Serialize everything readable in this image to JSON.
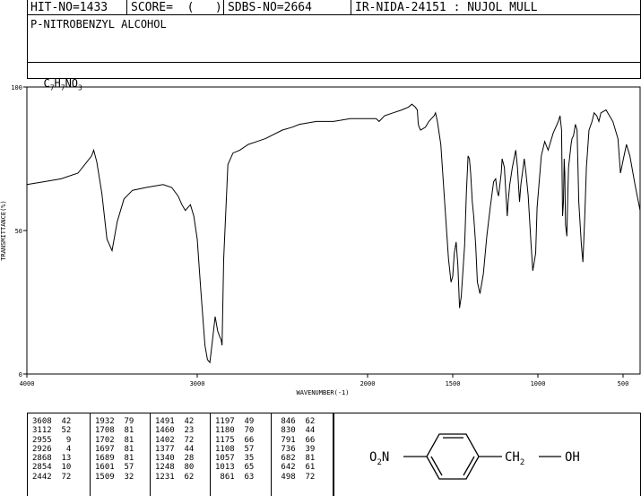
{
  "header": {
    "hit_no": "HIT-NO=1433",
    "score": "SCORE=  (   )",
    "sdbs_no": "SDBS-NO=2664",
    "ir_id": "IR-NIDA-24151 : NUJOL MULL"
  },
  "compound_name": "P-NITROBENZYL ALCOHOL",
  "formula": {
    "c": "C",
    "c_n": "7",
    "h": "H",
    "h_n": "7",
    "rest": "NO",
    "o_n": "3"
  },
  "chart_data": {
    "type": "line",
    "xlabel": "WAVENUMBER(-1)",
    "ylabel": "TRANSMITTANCE(%)",
    "xlim": [
      4000,
      400
    ],
    "ylim": [
      0,
      100
    ],
    "x_ticks": [
      4000,
      3000,
      2000,
      1500,
      1000,
      500
    ],
    "y_ticks": [
      0,
      50,
      100
    ],
    "series": [
      {
        "x": [
          4000,
          3900,
          3800,
          3700,
          3660,
          3620,
          3608,
          3590,
          3560,
          3530,
          3500,
          3470,
          3430,
          3380,
          3300,
          3200,
          3150,
          3112,
          3090,
          3070,
          3040,
          3020,
          3000,
          2980,
          2955,
          2940,
          2926,
          2910,
          2895,
          2880,
          2868,
          2860,
          2854,
          2845,
          2820,
          2790,
          2750,
          2700,
          2650,
          2600,
          2500,
          2442,
          2400,
          2300,
          2200,
          2100,
          2000,
          1950,
          1932,
          1900,
          1850,
          1800,
          1760,
          1740,
          1720,
          1708,
          1702,
          1697,
          1689,
          1660,
          1640,
          1625,
          1609,
          1601,
          1590,
          1570,
          1545,
          1525,
          1510,
          1500,
          1491,
          1480,
          1470,
          1460,
          1450,
          1430,
          1420,
          1410,
          1402,
          1395,
          1385,
          1377,
          1365,
          1355,
          1340,
          1320,
          1300,
          1280,
          1260,
          1248,
          1240,
          1231,
          1215,
          1210,
          1197,
          1190,
          1180,
          1175,
          1165,
          1150,
          1130,
          1120,
          1108,
          1100,
          1080,
          1070,
          1057,
          1050,
          1040,
          1030,
          1013,
          1005,
          980,
          960,
          940,
          910,
          880,
          870,
          861,
          855,
          850,
          846,
          842,
          838,
          830,
          825,
          820,
          805,
          800,
          791,
          780,
          770,
          760,
          745,
          736,
          725,
          715,
          700,
          682,
          670,
          655,
          642,
          630,
          600,
          560,
          530,
          515,
          498,
          480,
          460,
          430,
          400
        ],
        "y": [
          66,
          67,
          68,
          70,
          73,
          76,
          78,
          74,
          63,
          47,
          43,
          53,
          61,
          64,
          65,
          66,
          65,
          62,
          59,
          57,
          59,
          55,
          47,
          30,
          10,
          5,
          4,
          12,
          20,
          15,
          13,
          12,
          10,
          40,
          73,
          77,
          78,
          80,
          81,
          82,
          85,
          86,
          87,
          88,
          88,
          89,
          89,
          89,
          88,
          90,
          91,
          92,
          93,
          94,
          93,
          92,
          87,
          86,
          85,
          86,
          88,
          89,
          90,
          91,
          88,
          80,
          58,
          40,
          32,
          34,
          42,
          46,
          38,
          23,
          27,
          45,
          63,
          76,
          75,
          70,
          60,
          55,
          45,
          32,
          28,
          35,
          48,
          58,
          67,
          68,
          64,
          62,
          70,
          75,
          72,
          65,
          55,
          60,
          66,
          72,
          78,
          72,
          60,
          66,
          75,
          70,
          62,
          55,
          45,
          36,
          42,
          58,
          76,
          81,
          78,
          84,
          88,
          90,
          85,
          55,
          60,
          75,
          70,
          52,
          48,
          62,
          72,
          80,
          82,
          83,
          87,
          85,
          60,
          45,
          39,
          55,
          72,
          85,
          88,
          91,
          90,
          88,
          91,
          92,
          88,
          82,
          70,
          75,
          80,
          76,
          66,
          57
        ],
        "color": "#000000"
      }
    ]
  },
  "peaks": {
    "col1": [
      "3608  42",
      "3112  52",
      "2955   9",
      "2926   4",
      "2868  13",
      "2854  10",
      "2442  72"
    ],
    "col2": [
      "1932  79",
      "1708  81",
      "1702  81",
      "1697  81",
      "1689  81",
      "1601  57",
      "1509  32"
    ],
    "col3": [
      "1491  42",
      "1460  23",
      "1402  72",
      "1377  44",
      "1340  28",
      "1248  80",
      "1231  62"
    ],
    "col4": [
      "1197  49",
      "1180  70",
      "1175  66",
      "1108  57",
      "1057  35",
      "1013  65",
      " 861  63"
    ],
    "col5": [
      " 846  62",
      " 830  44",
      " 791  66",
      " 736  39",
      " 682  81",
      " 642  61",
      " 498  72"
    ]
  },
  "structure": {
    "left_group": "O",
    "left_sub": "2",
    "left_n": "N",
    "ch2": "CH",
    "ch2_sub": "2",
    "oh": "OH"
  }
}
